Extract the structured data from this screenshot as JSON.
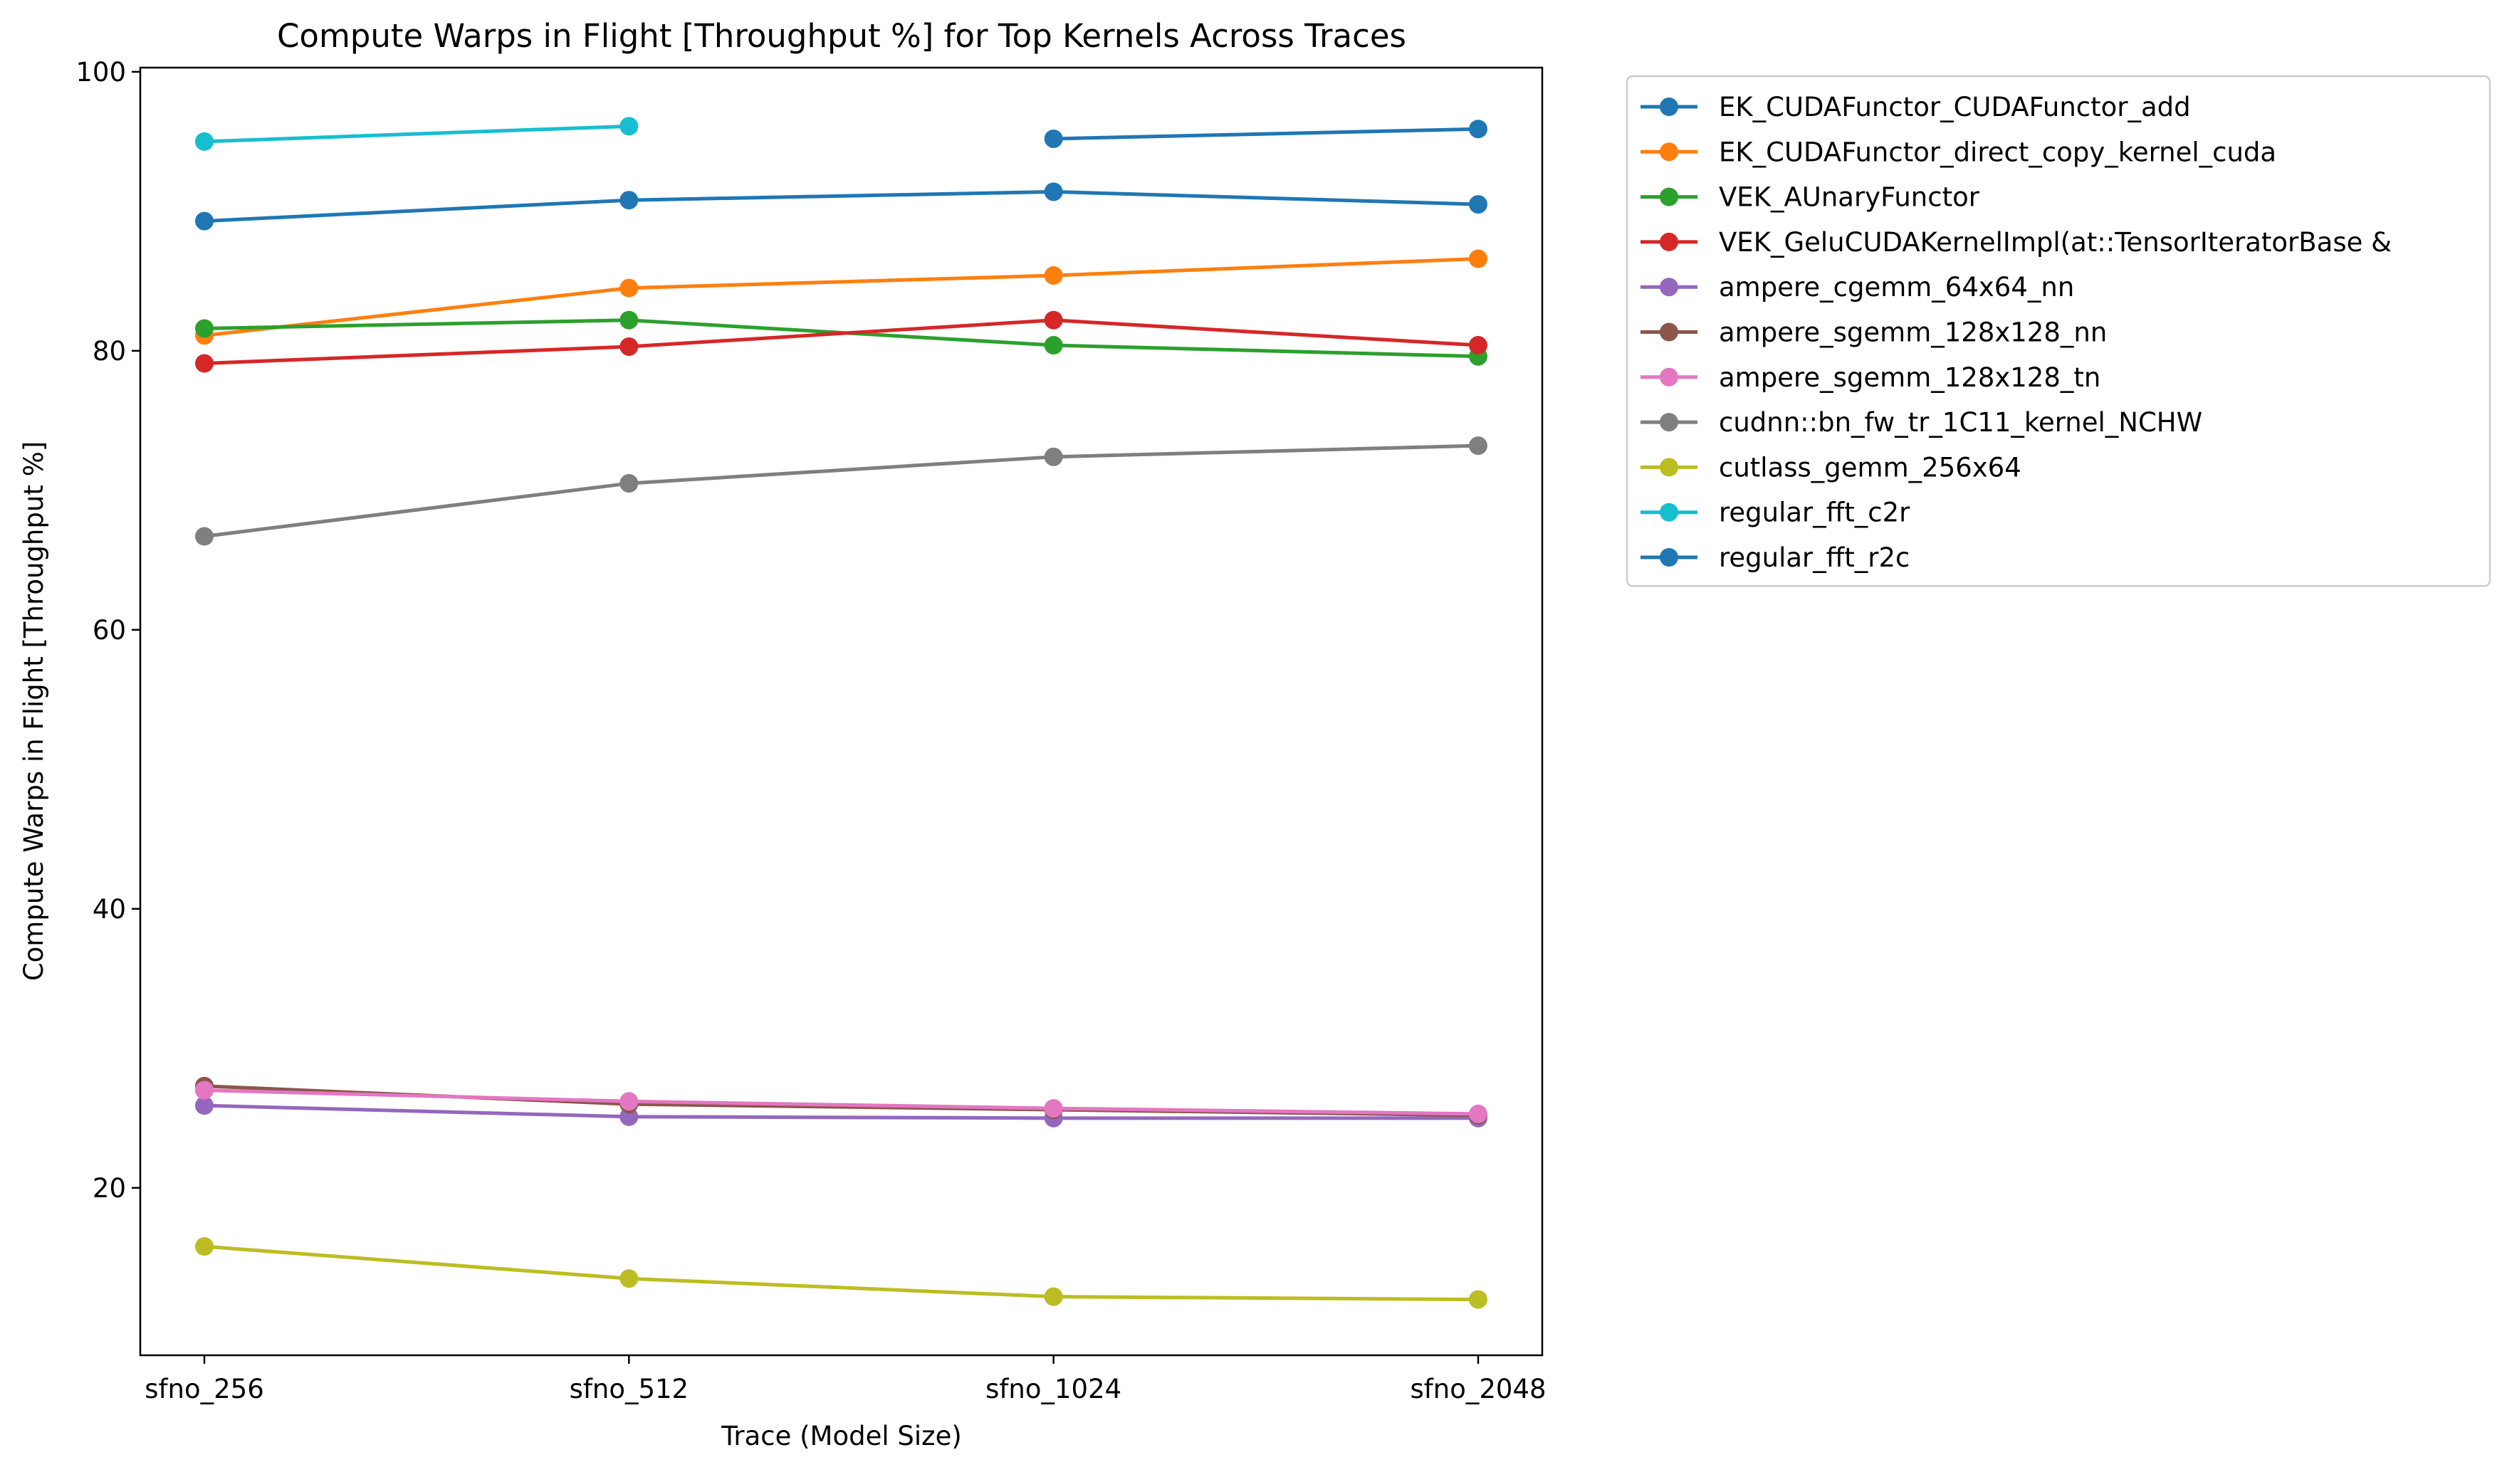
{
  "chart_data": {
    "type": "line",
    "title": "Compute Warps in Flight [Throughput %] for Top Kernels Across Traces",
    "xlabel": "Trace (Model Size)",
    "ylabel": "Compute Warps in Flight [Throughput %]",
    "categories": [
      "sfno_256",
      "sfno_512",
      "sfno_1024",
      "sfno_2048"
    ],
    "ylim": [
      8,
      100.3
    ],
    "yticks": [
      20,
      40,
      60,
      80,
      100
    ],
    "grid": false,
    "legend_position": "outside-top-right",
    "series": [
      {
        "name": "EK_CUDAFunctor_CUDAFunctor_add",
        "color": "#1f77b4",
        "values": [
          89.3,
          90.8,
          91.4,
          90.5
        ]
      },
      {
        "name": "EK_CUDAFunctor_direct_copy_kernel_cuda",
        "color": "#ff7f0e",
        "values": [
          81.1,
          84.5,
          85.4,
          86.6
        ]
      },
      {
        "name": "VEK_AUnaryFunctor",
        "color": "#2ca02c",
        "values": [
          81.6,
          82.2,
          80.4,
          79.6
        ]
      },
      {
        "name": "VEK_GeluCUDAKernelImpl(at::TensorIteratorBase &",
        "color": "#d62728",
        "values": [
          79.1,
          80.3,
          82.2,
          80.4
        ]
      },
      {
        "name": "ampere_cgemm_64x64_nn",
        "color": "#9467bd",
        "values": [
          25.9,
          25.1,
          25.0,
          25.0
        ]
      },
      {
        "name": "ampere_sgemm_128x128_nn",
        "color": "#8c564b",
        "values": [
          27.3,
          26.0,
          25.6,
          25.2
        ]
      },
      {
        "name": "ampere_sgemm_128x128_tn",
        "color": "#e377c2",
        "values": [
          27.0,
          26.2,
          25.7,
          25.3
        ]
      },
      {
        "name": "cudnn::bn_fw_tr_1C11_kernel_NCHW",
        "color": "#7f7f7f",
        "values": [
          66.7,
          70.5,
          72.4,
          73.2
        ]
      },
      {
        "name": "cutlass_gemm_256x64",
        "color": "#bcbd22",
        "values": [
          15.8,
          13.5,
          12.2,
          12.0
        ]
      },
      {
        "name": "regular_fft_c2r",
        "color": "#17becf",
        "values": [
          95.0,
          96.1,
          null,
          null
        ]
      },
      {
        "name": "regular_fft_r2c",
        "color": "#1f77b4",
        "values": [
          null,
          null,
          95.2,
          95.9
        ]
      }
    ]
  }
}
